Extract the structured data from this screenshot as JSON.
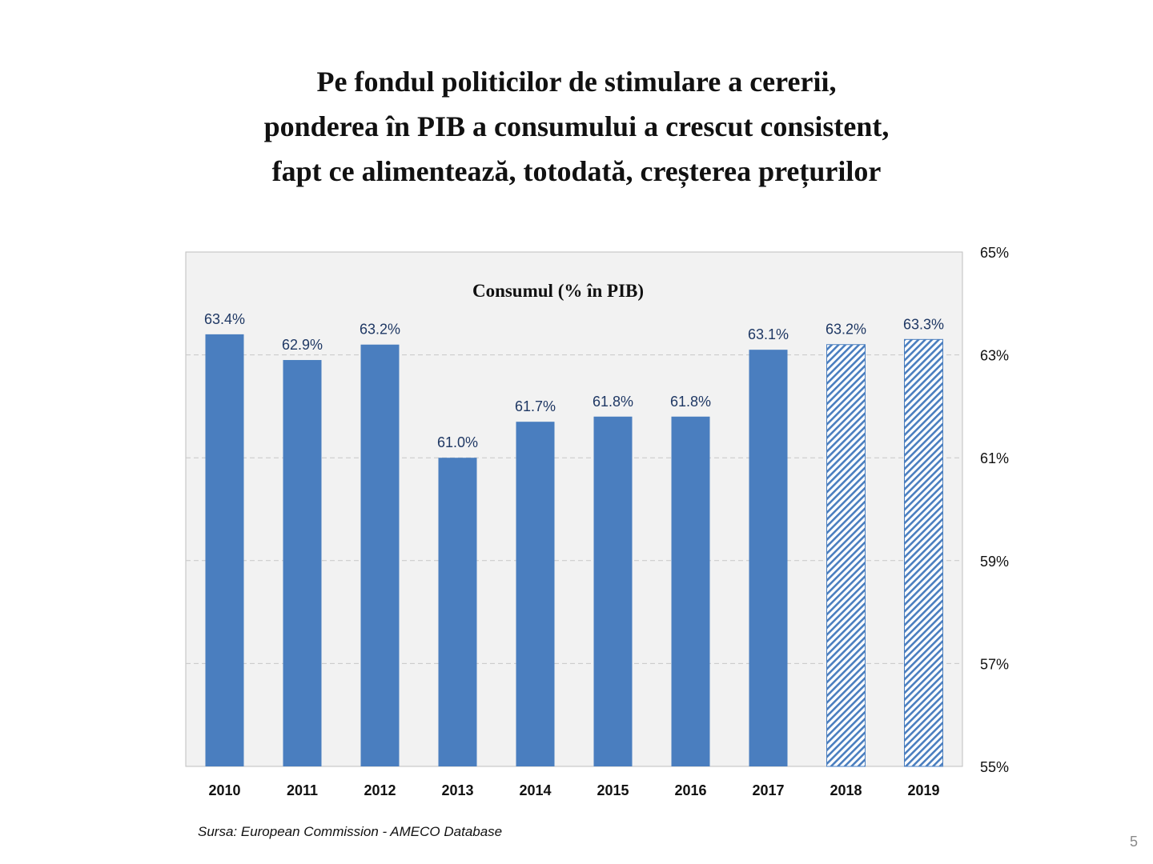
{
  "slide": {
    "title_lines": [
      "Pe fondul politicilor de stimulare a cererii,",
      "ponderea în PIB a consumului a crescut consistent,",
      "fapt ce alimentează, totodată, creșterea prețurilor"
    ],
    "source": "Sursa: European Commission - AMECO Database",
    "page_number": "5"
  },
  "colors": {
    "bar": "#4a7ebf",
    "plot_background": "#f2f2f2",
    "grid": "#c8c8c8",
    "value_label": "#1f3864"
  },
  "chart_data": {
    "type": "bar",
    "title": "Consumul (% în PIB)",
    "categories": [
      "2010",
      "2011",
      "2012",
      "2013",
      "2014",
      "2015",
      "2016",
      "2017",
      "2018",
      "2019"
    ],
    "values": [
      63.4,
      62.9,
      63.2,
      61.0,
      61.7,
      61.8,
      61.8,
      63.1,
      63.2,
      63.3
    ],
    "value_labels": [
      "63.4%",
      "62.9%",
      "63.2%",
      "61.0%",
      "61.7%",
      "61.8%",
      "61.8%",
      "63.1%",
      "63.2%",
      "63.3%"
    ],
    "forecast_categories": [
      "2018",
      "2019"
    ],
    "bar_style_forecast": "diagonal-hatch",
    "ylim": [
      55,
      65
    ],
    "y_axis_position": "right",
    "y_ticks": [
      55,
      57,
      59,
      61,
      63,
      65
    ],
    "y_tick_labels": [
      "55%",
      "57%",
      "59%",
      "61%",
      "63%",
      "65%"
    ],
    "grid": "horizontal-dashed",
    "legend": "none"
  }
}
